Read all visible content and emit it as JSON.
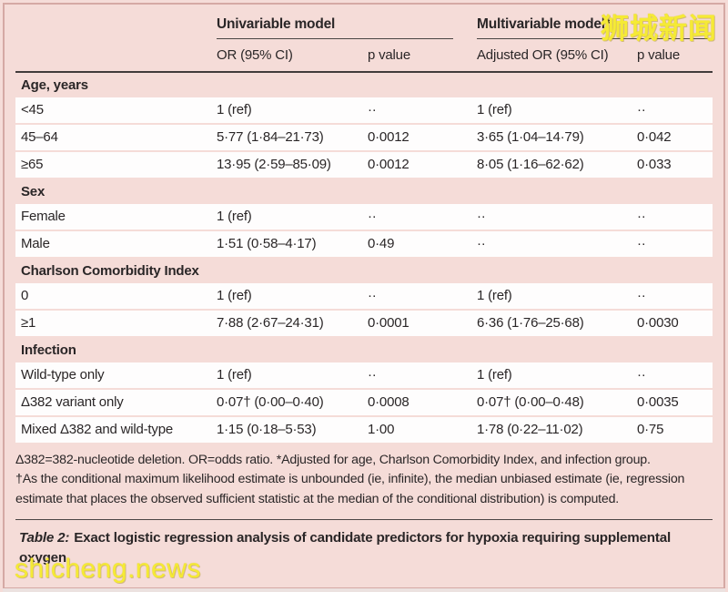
{
  "watermarks": {
    "top_right": "狮城新闻",
    "bottom_left": "shicheng.news",
    "color": "#f5ea35"
  },
  "colors": {
    "page_pink": "#f5dcd8",
    "row_white": "#fefdfd",
    "rule_dark": "#413c3b",
    "text": "#2a2627"
  },
  "table": {
    "group_headers": {
      "univariable": "Univariable model",
      "multivariable": "Multivariable model*"
    },
    "col_headers": [
      "OR (95% CI)",
      "p value",
      "Adjusted OR (95% CI)",
      "p value"
    ],
    "sections": [
      {
        "title": "Age, years",
        "rows": [
          {
            "label": "<45",
            "or": "1 (ref)",
            "p": "··",
            "aor": "1 (ref)",
            "ap": "··"
          },
          {
            "label": "45–64",
            "or": "5·77 (1·84–21·73)",
            "p": "0·0012",
            "aor": "3·65 (1·04–14·79)",
            "ap": "0·042"
          },
          {
            "label": "≥65",
            "or": "13·95 (2·59–85·09)",
            "p": "0·0012",
            "aor": "8·05 (1·16–62·62)",
            "ap": "0·033"
          }
        ]
      },
      {
        "title": "Sex",
        "rows": [
          {
            "label": "Female",
            "or": "1 (ref)",
            "p": "··",
            "aor": "··",
            "ap": "··"
          },
          {
            "label": "Male",
            "or": "1·51 (0·58–4·17)",
            "p": "0·49",
            "aor": "··",
            "ap": "··"
          }
        ]
      },
      {
        "title": "Charlson Comorbidity Index",
        "rows": [
          {
            "label": "0",
            "or": "1 (ref)",
            "p": "··",
            "aor": "1 (ref)",
            "ap": "··"
          },
          {
            "label": "≥1",
            "or": "7·88 (2·67–24·31)",
            "p": "0·0001",
            "aor": "6·36 (1·76–25·68)",
            "ap": "0·0030"
          }
        ]
      },
      {
        "title": "Infection",
        "rows": [
          {
            "label": "Wild-type only",
            "or": "1 (ref)",
            "p": "··",
            "aor": "1 (ref)",
            "ap": "··"
          },
          {
            "label": "Δ382 variant only",
            "or": "0·07† (0·00–0·40)",
            "p": "0·0008",
            "aor": "0·07† (0·00–0·48)",
            "ap": "0·0035"
          },
          {
            "label": "Mixed Δ382 and wild-type",
            "or": "1·15 (0·18–5·53)",
            "p": "1·00",
            "aor": "1·78 (0·22–11·02)",
            "ap": "0·75"
          }
        ]
      }
    ],
    "footnotes": [
      "Δ382=382-nucleotide deletion. OR=odds ratio. *Adjusted for age, Charlson Comorbidity Index, and infection group.",
      "†As the conditional maximum likelihood estimate is unbounded (ie, infinite), the median unbiased estimate (ie, regression estimate that places the observed sufficient statistic at the median of the conditional distribution) is computed."
    ],
    "caption_prefix": "Table 2:",
    "caption_text": "Exact logistic regression analysis of candidate predictors for hypoxia requiring supplemental oxygen"
  }
}
